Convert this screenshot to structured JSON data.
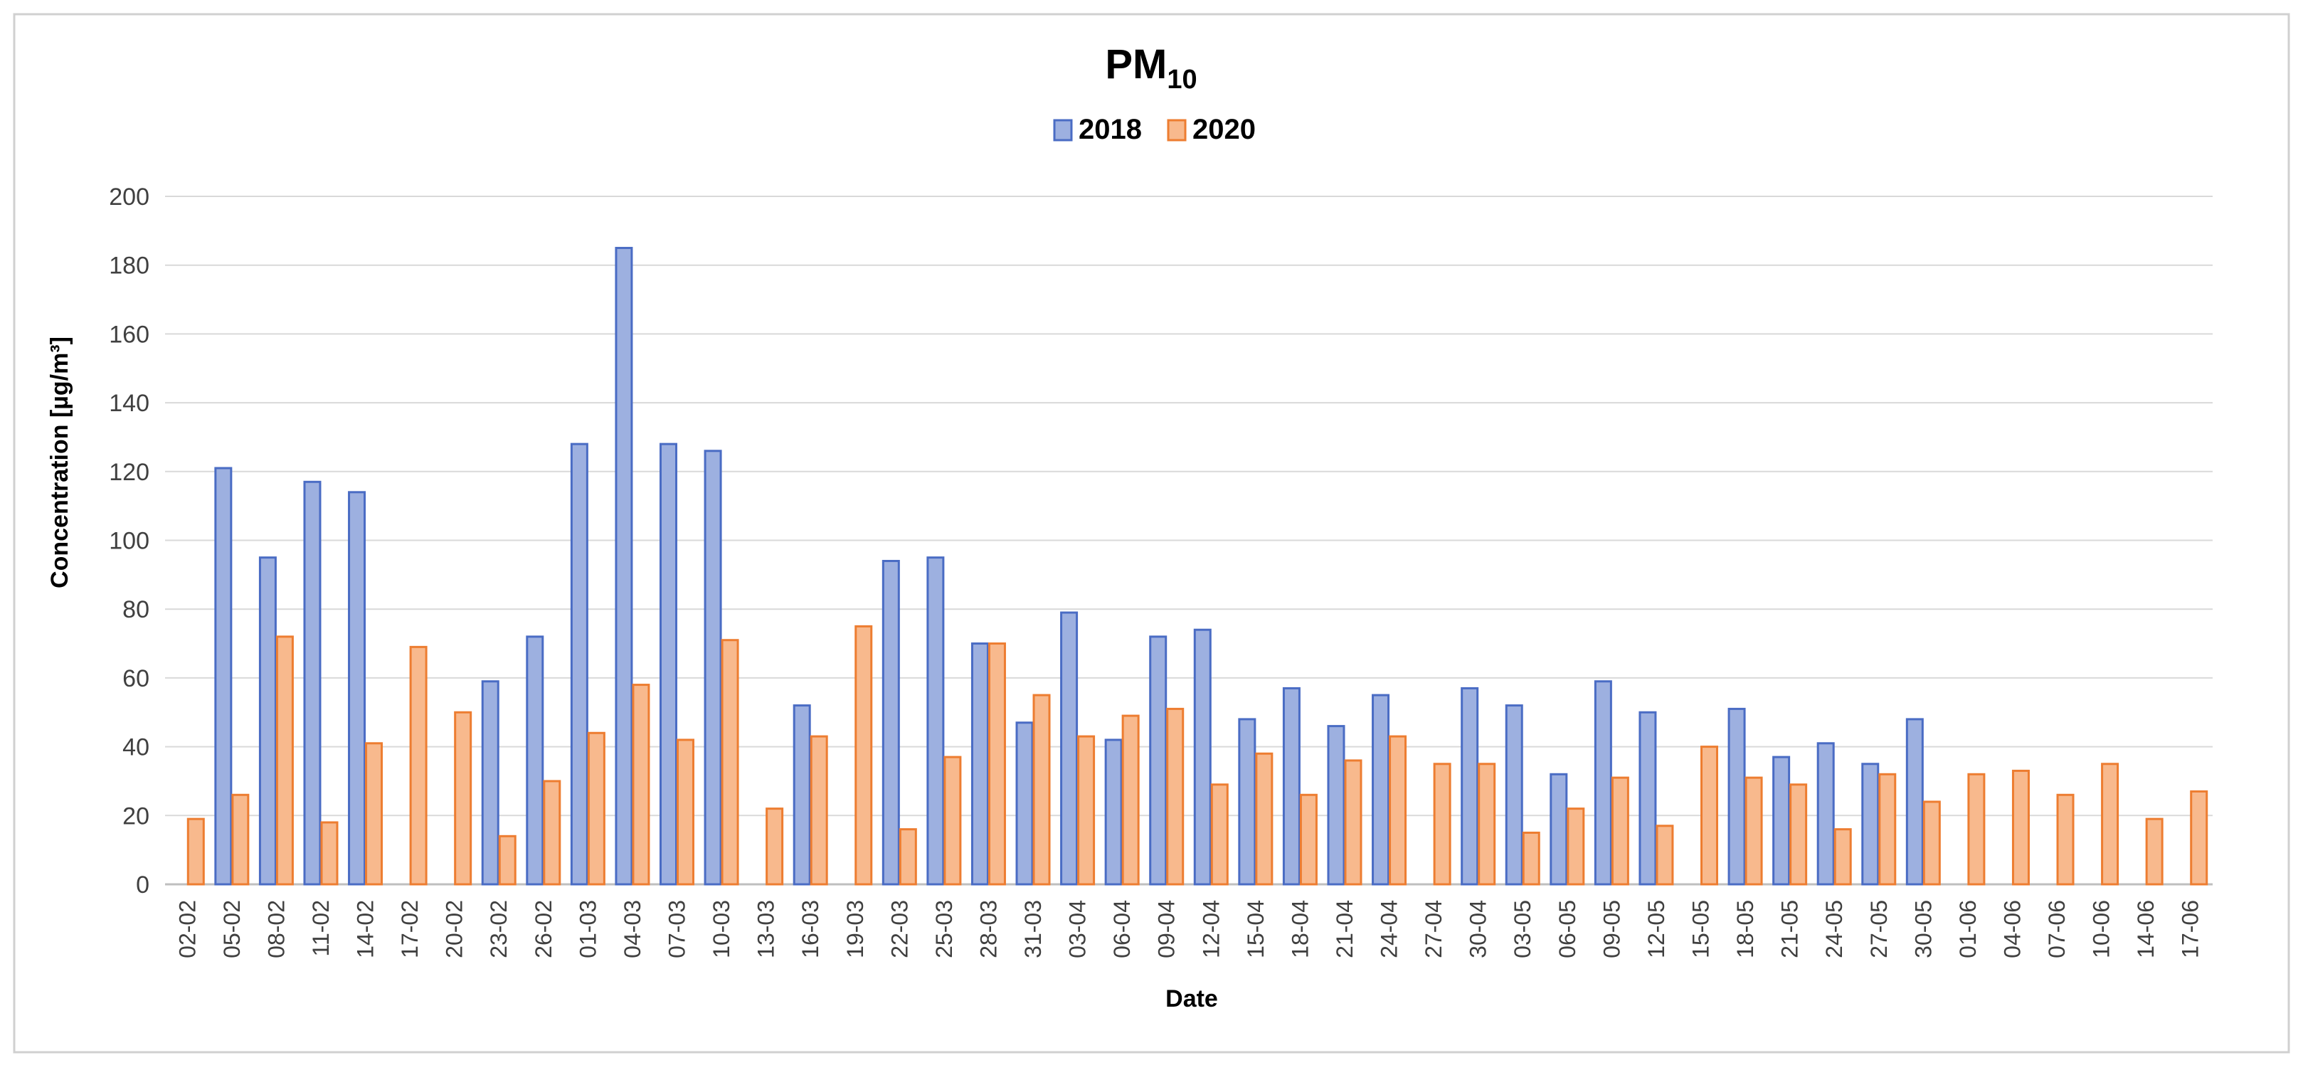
{
  "chart_data": {
    "type": "bar",
    "title": "PM",
    "title_subscript": "10",
    "xlabel": "Date",
    "ylabel": "Concentration [µg/m³]",
    "ylim": [
      0,
      200
    ],
    "yticks": [
      0,
      20,
      40,
      60,
      80,
      100,
      120,
      140,
      160,
      180,
      200
    ],
    "grid": true,
    "legend_position": "top-center",
    "categories": [
      "02-02",
      "05-02",
      "08-02",
      "11-02",
      "14-02",
      "17-02",
      "20-02",
      "23-02",
      "26-02",
      "01-03",
      "04-03",
      "07-03",
      "10-03",
      "13-03",
      "16-03",
      "19-03",
      "22-03",
      "25-03",
      "28-03",
      "31-03",
      "03-04",
      "06-04",
      "09-04",
      "12-04",
      "15-04",
      "18-04",
      "21-04",
      "24-04",
      "27-04",
      "30-04",
      "03-05",
      "06-05",
      "09-05",
      "12-05",
      "15-05",
      "18-05",
      "21-05",
      "24-05",
      "27-05",
      "30-05",
      "01-06",
      "04-06",
      "07-06",
      "10-06",
      "14-06",
      "17-06"
    ],
    "series": [
      {
        "name": "2018",
        "color": "#9db0e0",
        "stroke": "#4a6cc4",
        "values": [
          null,
          121,
          95,
          117,
          114,
          null,
          null,
          59,
          72,
          128,
          185,
          128,
          126,
          null,
          52,
          null,
          94,
          95,
          70,
          47,
          79,
          42,
          72,
          74,
          48,
          57,
          46,
          55,
          null,
          57,
          52,
          32,
          59,
          50,
          null,
          51,
          37,
          41,
          35,
          48,
          null,
          null,
          null,
          null,
          null,
          null
        ]
      },
      {
        "name": "2020",
        "color": "#f8b98d",
        "stroke": "#ed7d31",
        "values": [
          19,
          26,
          72,
          18,
          41,
          69,
          50,
          14,
          30,
          44,
          58,
          42,
          71,
          22,
          43,
          75,
          16,
          37,
          70,
          55,
          43,
          49,
          51,
          29,
          38,
          26,
          36,
          43,
          35,
          35,
          15,
          22,
          31,
          17,
          40,
          31,
          29,
          16,
          32,
          24,
          32,
          33,
          26,
          35,
          19,
          27
        ]
      }
    ]
  }
}
